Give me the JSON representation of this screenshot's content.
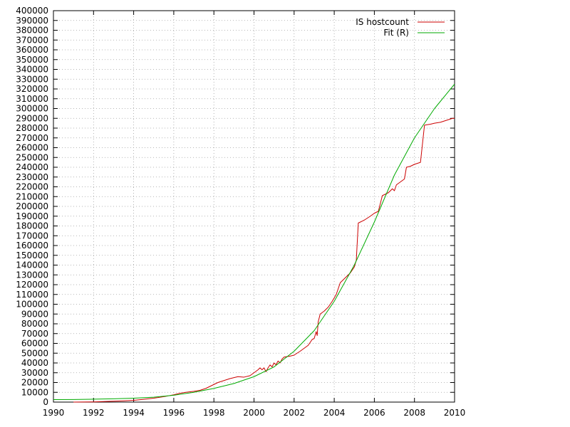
{
  "chart_data": {
    "type": "line",
    "title": "",
    "xlabel": "",
    "ylabel": "",
    "xlim": [
      1990,
      2010
    ],
    "ylim": [
      0,
      400000
    ],
    "x_ticks": [
      1990,
      1992,
      1994,
      1996,
      1998,
      2000,
      2002,
      2004,
      2006,
      2008,
      2010
    ],
    "y_ticks": [
      0,
      10000,
      20000,
      30000,
      40000,
      50000,
      60000,
      70000,
      80000,
      90000,
      100000,
      110000,
      120000,
      130000,
      140000,
      150000,
      160000,
      170000,
      180000,
      190000,
      200000,
      210000,
      220000,
      230000,
      240000,
      250000,
      260000,
      270000,
      280000,
      290000,
      300000,
      310000,
      320000,
      330000,
      340000,
      350000,
      360000,
      370000,
      380000,
      390000,
      400000
    ],
    "x_tick_labels": [
      "1990",
      "1992",
      "1994",
      "1996",
      "1998",
      "2000",
      "2002",
      "2004",
      "2006",
      "2008",
      "2010"
    ],
    "y_tick_labels": [
      "0",
      "10000",
      "20000",
      "30000",
      "40000",
      "50000",
      "60000",
      "70000",
      "80000",
      "90000",
      "100000",
      "110000",
      "120000",
      "130000",
      "140000",
      "150000",
      "160000",
      "170000",
      "180000",
      "190000",
      "200000",
      "210000",
      "220000",
      "230000",
      "240000",
      "250000",
      "260000",
      "270000",
      "280000",
      "290000",
      "300000",
      "310000",
      "320000",
      "330000",
      "340000",
      "350000",
      "360000",
      "370000",
      "380000",
      "390000",
      "400000"
    ],
    "grid": true,
    "legend_position": "top-right",
    "series": [
      {
        "name": "IS hostcount",
        "color": "#cc0000",
        "points": [
          [
            1991.0,
            0
          ],
          [
            1992.0,
            200
          ],
          [
            1992.5,
            500
          ],
          [
            1993.0,
            900
          ],
          [
            1993.5,
            1300
          ],
          [
            1994.0,
            1800
          ],
          [
            1994.5,
            2800
          ],
          [
            1995.0,
            4000
          ],
          [
            1995.5,
            5500
          ],
          [
            1996.0,
            7500
          ],
          [
            1996.3,
            9000
          ],
          [
            1996.6,
            10000
          ],
          [
            1997.0,
            11000
          ],
          [
            1997.3,
            12000
          ],
          [
            1997.6,
            14000
          ],
          [
            1998.0,
            18000
          ],
          [
            1998.2,
            20000
          ],
          [
            1998.5,
            22000
          ],
          [
            1998.8,
            24000
          ],
          [
            1999.0,
            25000
          ],
          [
            1999.2,
            26000
          ],
          [
            1999.5,
            25500
          ],
          [
            1999.8,
            27000
          ],
          [
            2000.0,
            30000
          ],
          [
            2000.2,
            33000
          ],
          [
            2000.3,
            35000
          ],
          [
            2000.4,
            33000
          ],
          [
            2000.5,
            35000
          ],
          [
            2000.6,
            31000
          ],
          [
            2000.7,
            35000
          ],
          [
            2000.8,
            38000
          ],
          [
            2000.9,
            36000
          ],
          [
            2001.0,
            40000
          ],
          [
            2001.1,
            38000
          ],
          [
            2001.2,
            42000
          ],
          [
            2001.3,
            40000
          ],
          [
            2001.4,
            44000
          ],
          [
            2001.5,
            46000
          ],
          [
            2001.8,
            47000
          ],
          [
            2002.0,
            48000
          ],
          [
            2002.3,
            52000
          ],
          [
            2002.5,
            55000
          ],
          [
            2002.7,
            58000
          ],
          [
            2002.9,
            64000
          ],
          [
            2003.0,
            65000
          ],
          [
            2003.1,
            72000
          ],
          [
            2003.15,
            68000
          ],
          [
            2003.2,
            82000
          ],
          [
            2003.3,
            90000
          ],
          [
            2003.5,
            93000
          ],
          [
            2003.7,
            97000
          ],
          [
            2003.9,
            103000
          ],
          [
            2004.1,
            110000
          ],
          [
            2004.3,
            122000
          ],
          [
            2004.5,
            126000
          ],
          [
            2004.8,
            132000
          ],
          [
            2005.0,
            138000
          ],
          [
            2005.1,
            145000
          ],
          [
            2005.2,
            183000
          ],
          [
            2005.5,
            186000
          ],
          [
            2005.8,
            190000
          ],
          [
            2006.0,
            193000
          ],
          [
            2006.2,
            195000
          ],
          [
            2006.4,
            211000
          ],
          [
            2006.7,
            214000
          ],
          [
            2006.9,
            218000
          ],
          [
            2007.0,
            216000
          ],
          [
            2007.1,
            222000
          ],
          [
            2007.3,
            225000
          ],
          [
            2007.5,
            228000
          ],
          [
            2007.6,
            240000
          ],
          [
            2007.8,
            241000
          ],
          [
            2008.0,
            243000
          ],
          [
            2008.3,
            245000
          ],
          [
            2008.5,
            283000
          ],
          [
            2008.8,
            284000
          ],
          [
            2009.0,
            285000
          ],
          [
            2009.3,
            286000
          ],
          [
            2009.6,
            288000
          ],
          [
            2009.9,
            290000
          ],
          [
            2010.0,
            290000
          ]
        ]
      },
      {
        "name": "Fit (R)",
        "color": "#00aa00",
        "points": [
          [
            1990.0,
            2500
          ],
          [
            1991.0,
            2600
          ],
          [
            1992.0,
            3000
          ],
          [
            1993.0,
            3400
          ],
          [
            1994.0,
            4000
          ],
          [
            1995.0,
            5000
          ],
          [
            1996.0,
            7000
          ],
          [
            1997.0,
            10000
          ],
          [
            1998.0,
            14000
          ],
          [
            1999.0,
            19000
          ],
          [
            2000.0,
            26000
          ],
          [
            2001.0,
            36000
          ],
          [
            2002.0,
            52000
          ],
          [
            2003.0,
            73000
          ],
          [
            2004.0,
            103000
          ],
          [
            2005.0,
            140000
          ],
          [
            2006.0,
            184000
          ],
          [
            2007.0,
            232000
          ],
          [
            2008.0,
            270000
          ],
          [
            2009.0,
            300000
          ],
          [
            2010.0,
            325000
          ]
        ]
      }
    ]
  }
}
